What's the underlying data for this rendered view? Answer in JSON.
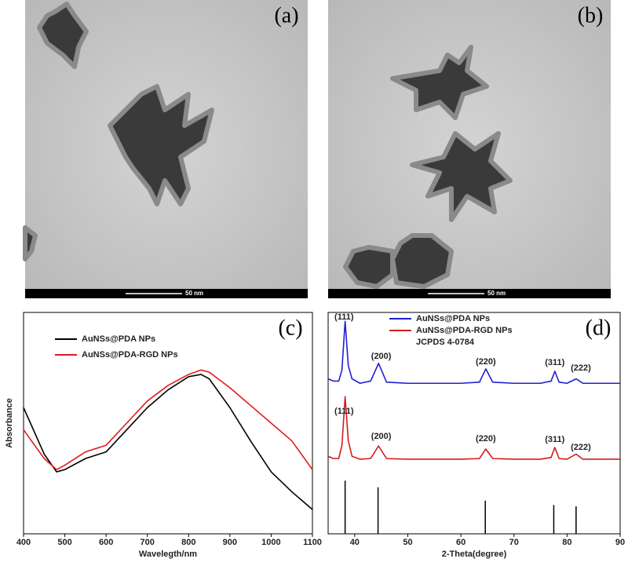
{
  "images": [
    {
      "label": "(a)",
      "scale_bar": "50 nm"
    },
    {
      "label": "(b)",
      "scale_bar": "50 nm"
    }
  ],
  "chart_data": [
    {
      "type": "line",
      "label": "(c)",
      "x_label": "Wavelegth/nm",
      "y_label": "Absorbance",
      "x": [
        400,
        450,
        480,
        500,
        550,
        600,
        650,
        700,
        750,
        800,
        830,
        850,
        900,
        950,
        1000,
        1050,
        1100
      ],
      "series": [
        {
          "name": "AuNSs@PDA NPs",
          "color": "#000000",
          "values": [
            0.57,
            0.36,
            0.28,
            0.29,
            0.34,
            0.37,
            0.47,
            0.57,
            0.65,
            0.71,
            0.72,
            0.7,
            0.57,
            0.42,
            0.28,
            0.19,
            0.11
          ]
        },
        {
          "name": "AuNSs@PDA-RGD NPs",
          "color": "#e31a1c",
          "values": [
            0.47,
            0.34,
            0.29,
            0.31,
            0.37,
            0.4,
            0.5,
            0.6,
            0.67,
            0.72,
            0.74,
            0.73,
            0.66,
            0.58,
            0.5,
            0.42,
            0.29
          ]
        }
      ],
      "xlim": [
        400,
        1100
      ],
      "xticks": [
        400,
        500,
        600,
        700,
        800,
        900,
        1000,
        1100
      ],
      "ylim": [
        0,
        1
      ],
      "legend": "upper left"
    },
    {
      "type": "line",
      "label": "(d)",
      "x_label": "2-Theta(degree)",
      "x": [
        35,
        36,
        37,
        37.6,
        38.2,
        38.8,
        39.5,
        41,
        43,
        44.5,
        46,
        50,
        55,
        60,
        63.5,
        64.7,
        66,
        70,
        75,
        77,
        77.7,
        78.5,
        80,
        81.7,
        83,
        85,
        90
      ],
      "series": [
        {
          "name": "AuNSs@PDA NPs",
          "color": "#1f1fd0",
          "values": [
            70,
            69,
            69,
            74,
            96,
            76,
            70,
            68,
            69,
            77,
            68.5,
            68,
            68,
            68,
            68.5,
            74.5,
            68.5,
            68,
            68,
            69,
            73.4,
            68.5,
            68,
            70,
            68,
            68,
            68
          ]
        },
        {
          "name": "AuNSs@PDA-RGD NPs",
          "color": "#d41c1c",
          "values": [
            35,
            34,
            34,
            40,
            62,
            42,
            35,
            33.7,
            34,
            39.7,
            34,
            33.7,
            33.7,
            33.7,
            34,
            38.3,
            34,
            33.7,
            33.7,
            34.5,
            39,
            34,
            33.7,
            36,
            33.7,
            33.7,
            33.7
          ]
        },
        {
          "name": "JCPDS 4-0784",
          "color": "#000000",
          "mark": "stick",
          "x": [
            38.2,
            44.4,
            64.6,
            77.5,
            81.7
          ],
          "values": [
            24,
            21,
            15,
            13,
            12.4
          ]
        }
      ],
      "annotations": [
        {
          "text": "(111)",
          "x": 38,
          "y": 97.9
        },
        {
          "text": "(200)",
          "x": 45,
          "y": 80.1
        },
        {
          "text": "(220)",
          "x": 64.7,
          "y": 77.7
        },
        {
          "text": "(311)",
          "x": 77.7,
          "y": 77.3
        },
        {
          "text": "(222)",
          "x": 82.6,
          "y": 74.8
        },
        {
          "text": "(111)",
          "x": 38,
          "y": 55.3
        },
        {
          "text": "(200)",
          "x": 45,
          "y": 44
        },
        {
          "text": "(220)",
          "x": 64.7,
          "y": 42.9
        },
        {
          "text": "(311)",
          "x": 77.7,
          "y": 42.6
        },
        {
          "text": "(222)",
          "x": 82.6,
          "y": 39
        }
      ],
      "xlim": [
        35,
        90
      ],
      "xticks": [
        40,
        50,
        60,
        70,
        80,
        90
      ],
      "ylim": [
        0,
        100
      ],
      "legend": "upper center"
    }
  ]
}
